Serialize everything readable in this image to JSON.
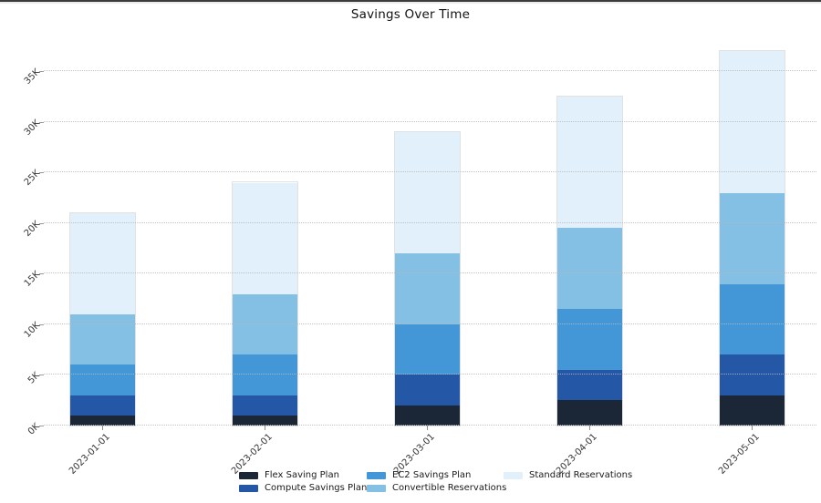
{
  "title": "Savings Over Time",
  "chart_data": {
    "type": "bar",
    "stacked": true,
    "title": "Savings Over Time",
    "xlabel": "",
    "ylabel": "",
    "categories": [
      "2023-01-01",
      "2023-02-01",
      "2023-03-01",
      "2023-04-01",
      "2023-05-01"
    ],
    "series": [
      {
        "name": "Flex Saving Plan",
        "color": "#1b2637",
        "values": [
          1000,
          1000,
          2000,
          2500,
          3000
        ]
      },
      {
        "name": "Compute Savings Plan",
        "color": "#2457a6",
        "values": [
          2000,
          2000,
          3000,
          3000,
          4000
        ]
      },
      {
        "name": "EC2 Savings Plan",
        "color": "#4397d7",
        "values": [
          3000,
          4000,
          5000,
          6000,
          7000
        ]
      },
      {
        "name": "Convertible Reservations",
        "color": "#84bfe4",
        "values": [
          5000,
          6000,
          7000,
          8000,
          9000
        ]
      },
      {
        "name": "Standard Reservations",
        "color": "#e2f0fb",
        "values": [
          10000,
          11000,
          12000,
          13000,
          14000
        ]
      }
    ],
    "totals": [
      21000,
      24000,
      29000,
      32500,
      37000
    ],
    "ylim": [
      0,
      38000
    ],
    "yticks": [
      0,
      5000,
      10000,
      15000,
      20000,
      25000,
      30000,
      35000
    ],
    "ytick_labels": [
      "0K",
      "5K",
      "10K",
      "15K",
      "20K",
      "25K",
      "30K",
      "35K"
    ],
    "grid": "horizontal-dotted",
    "legend_position": "bottom"
  }
}
